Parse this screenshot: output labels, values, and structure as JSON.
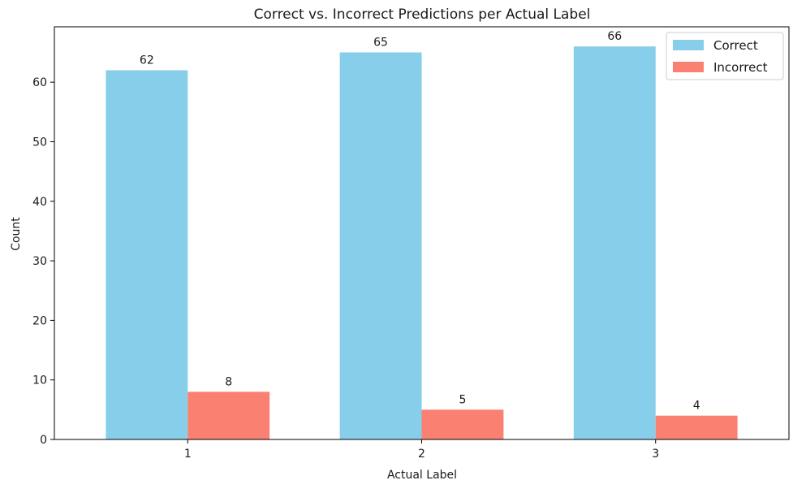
{
  "chart_data": {
    "type": "bar",
    "title": "Correct vs. Incorrect Predictions per Actual Label",
    "xlabel": "Actual Label",
    "ylabel": "Count",
    "categories": [
      "1",
      "2",
      "3"
    ],
    "ylim": [
      0,
      69.3
    ],
    "yticks": [
      0,
      10,
      20,
      30,
      40,
      50,
      60
    ],
    "grid": false,
    "legend_position": "top-right",
    "series": [
      {
        "name": "Correct",
        "values": [
          62,
          65,
          66
        ],
        "color": "#87ceeb"
      },
      {
        "name": "Incorrect",
        "values": [
          8,
          5,
          4
        ],
        "color": "#fa8072"
      }
    ],
    "data_labels": [
      [
        "62",
        "65",
        "66"
      ],
      [
        "8",
        "5",
        "4"
      ]
    ]
  }
}
